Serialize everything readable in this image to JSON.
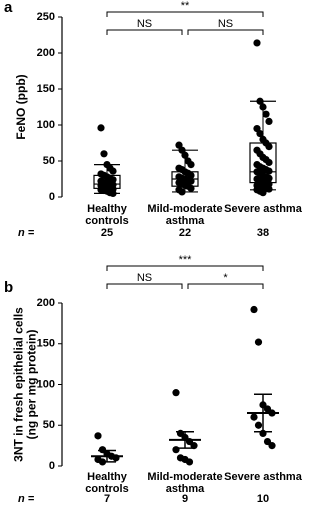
{
  "chart_data": [
    {
      "type": "box",
      "panel": "a",
      "y_label": [
        "FeNO (ppb)"
      ],
      "categories": [
        "Healthy controls",
        "Mild-moderate asthma",
        "Severe asthma"
      ],
      "n_label": "n =",
      "n": [
        25,
        22,
        38
      ],
      "annotations": [
        "**",
        "NS",
        "NS"
      ],
      "ylim": [
        0,
        250
      ],
      "yticks": [
        0,
        50,
        100,
        150,
        200,
        250
      ],
      "box": [
        {
          "low": 5,
          "q1": 12,
          "median": 18,
          "q3": 30,
          "high": 45
        },
        {
          "low": 7,
          "q1": 15,
          "median": 25,
          "q3": 35,
          "high": 65
        },
        {
          "low": 10,
          "q1": 20,
          "median": 35,
          "q3": 75,
          "high": 133
        }
      ],
      "points": [
        [
          96,
          60,
          45,
          40,
          36,
          32,
          30,
          28,
          26,
          24,
          22,
          20,
          19,
          18,
          17,
          16,
          15,
          14,
          12,
          11,
          10,
          9,
          8,
          6,
          5
        ],
        [
          72,
          65,
          58,
          50,
          45,
          40,
          38,
          35,
          33,
          30,
          28,
          26,
          25,
          23,
          22,
          20,
          18,
          16,
          15,
          12,
          10,
          7
        ],
        [
          214,
          133,
          125,
          115,
          105,
          95,
          88,
          80,
          75,
          70,
          65,
          60,
          55,
          52,
          48,
          45,
          42,
          40,
          38,
          36,
          35,
          33,
          30,
          28,
          26,
          25,
          23,
          22,
          20,
          18,
          16,
          15,
          14,
          12,
          11,
          10,
          8,
          6
        ]
      ],
      "color": "#000000"
    },
    {
      "type": "dot",
      "panel": "b",
      "y_label": [
        "3NT in fresh epithelial cells",
        "(ng per mg protein)"
      ],
      "categories": [
        "Healthy controls",
        "Mild-moderate asthma",
        "Severe asthma"
      ],
      "n_label": "n =",
      "n": [
        7,
        9,
        10
      ],
      "annotations": [
        "***",
        "NS",
        "*"
      ],
      "ylim": [
        0,
        200
      ],
      "yticks": [
        0,
        50,
        100,
        150,
        200
      ],
      "mean": [
        12,
        32,
        65
      ],
      "sem": [
        7,
        10,
        23
      ],
      "points": [
        [
          37,
          20,
          15,
          12,
          10,
          8,
          5
        ],
        [
          90,
          40,
          35,
          30,
          25,
          20,
          10,
          8,
          5
        ],
        [
          192,
          152,
          75,
          70,
          65,
          60,
          50,
          40,
          30,
          25
        ]
      ],
      "color": "#000000"
    }
  ]
}
